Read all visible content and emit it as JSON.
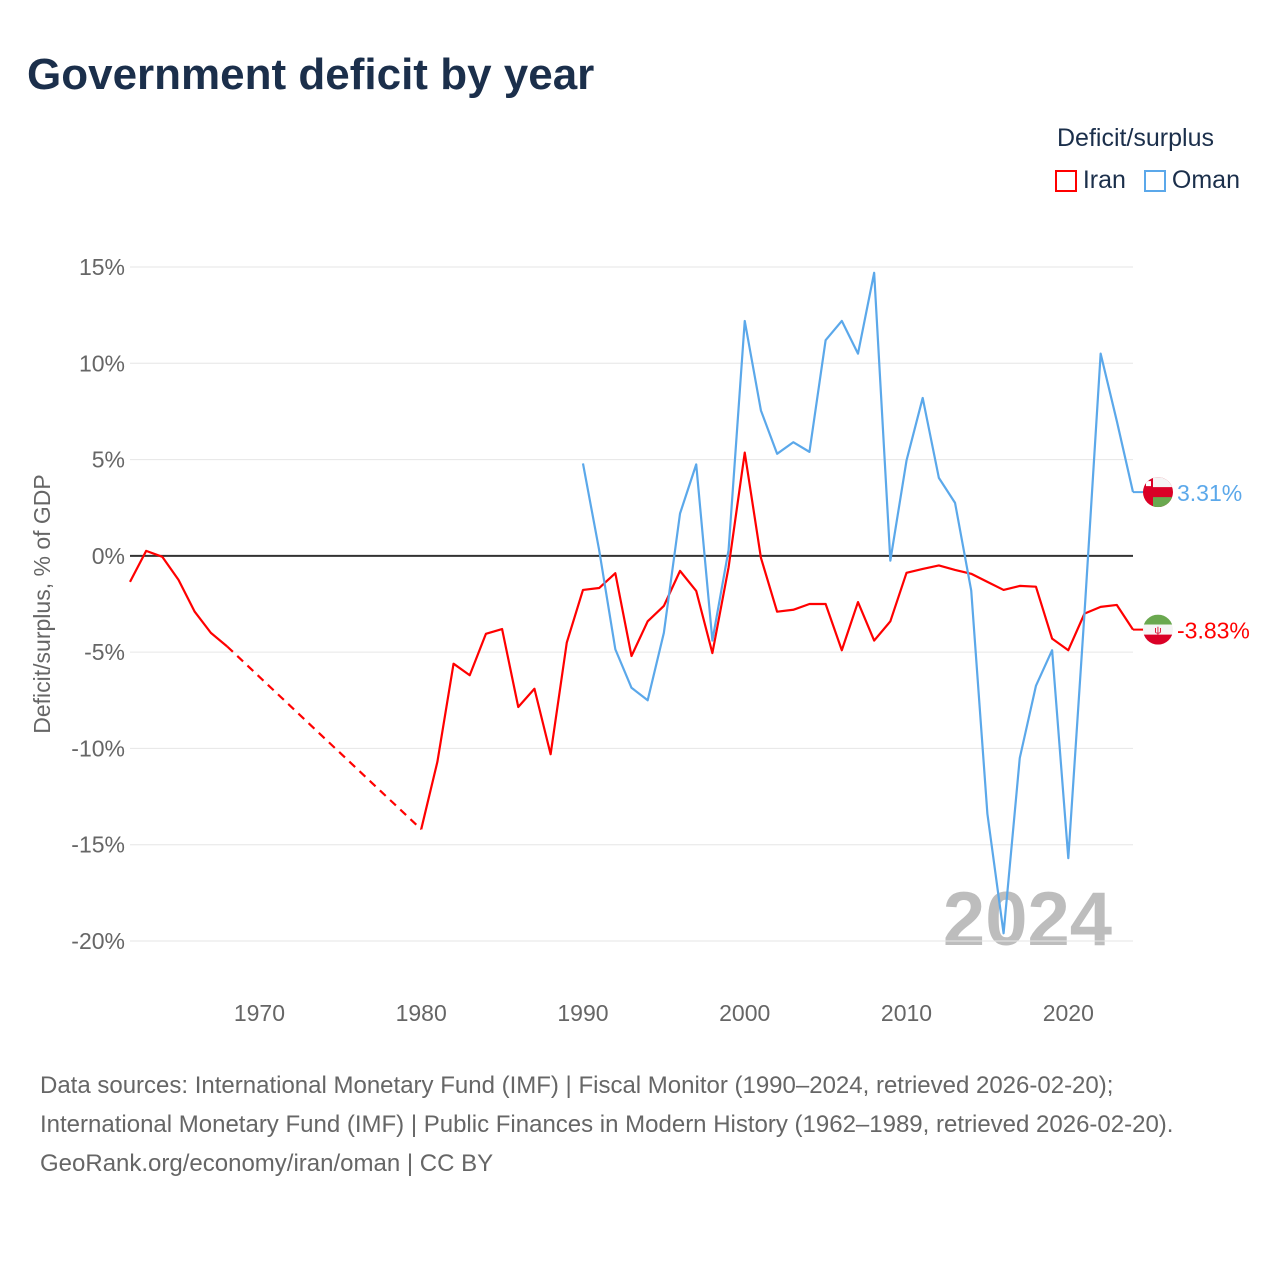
{
  "chart_data": {
    "type": "line",
    "title": "Government deficit by year",
    "ylabel": "Deficit/surplus, % of GDP",
    "xlabel": "",
    "xlim": [
      1962,
      2024
    ],
    "ylim": [
      -20,
      15
    ],
    "x_ticks": [
      1970,
      1980,
      1990,
      2000,
      2010,
      2020
    ],
    "x_tick_labels": [
      "1970",
      "1980",
      "1990",
      "2000",
      "2010",
      "2020"
    ],
    "y_ticks": [
      15,
      10,
      5,
      0,
      -5,
      -10,
      -15,
      -20
    ],
    "y_tick_labels": [
      "15%",
      "10%",
      "5%",
      "0%",
      "-5%",
      "-10%",
      "-15%",
      "-20%"
    ],
    "grid": true,
    "legend_title": "Deficit/surplus",
    "legend_position": "top-right",
    "year_watermark": "2024",
    "series": [
      {
        "name": "Iran",
        "color": "#ff0000",
        "end_label": "-3.83%",
        "flag": "iran-flag",
        "x": [
          1962,
          1963,
          1964,
          1965,
          1966,
          1967,
          1968,
          1980,
          1981,
          1982,
          1983,
          1984,
          1985,
          1986,
          1987,
          1988,
          1989,
          1990,
          1991,
          1992,
          1993,
          1994,
          1995,
          1996,
          1997,
          1998,
          1999,
          2000,
          2001,
          2002,
          2003,
          2004,
          2005,
          2006,
          2007,
          2008,
          2009,
          2010,
          2011,
          2012,
          2013,
          2014,
          2015,
          2016,
          2017,
          2018,
          2019,
          2020,
          2021,
          2022,
          2023,
          2024
        ],
        "values": [
          -1.35,
          0.26,
          -0.05,
          -1.25,
          -2.9,
          -4.0,
          -4.7,
          -14.2,
          -10.7,
          -5.6,
          -6.2,
          -4.05,
          -3.8,
          -7.85,
          -6.9,
          -10.3,
          -4.5,
          -1.77,
          -1.67,
          -0.9,
          -5.2,
          -3.4,
          -2.6,
          -0.78,
          -1.82,
          -5.05,
          -0.6,
          5.36,
          -0.1,
          -2.9,
          -2.8,
          -2.5,
          -2.5,
          -4.9,
          -2.4,
          -4.4,
          -3.4,
          -0.88,
          -0.68,
          -0.5,
          -0.73,
          -0.93,
          -1.35,
          -1.77,
          -1.56,
          -1.6,
          -4.3,
          -4.9,
          -3.0,
          -2.65,
          -2.55,
          -3.83
        ],
        "gaps": [
          [
            1968,
            1980
          ]
        ]
      },
      {
        "name": "Oman",
        "color": "#5ba8ea",
        "end_label": "3.31%",
        "flag": "oman-flag",
        "x": [
          1990,
          1991,
          1992,
          1993,
          1994,
          1995,
          1996,
          1997,
          1998,
          1999,
          2000,
          2001,
          2002,
          2003,
          2004,
          2005,
          2006,
          2007,
          2008,
          2009,
          2010,
          2011,
          2012,
          2013,
          2014,
          2015,
          2016,
          2017,
          2018,
          2019,
          2020,
          2021,
          2022,
          2023,
          2024
        ],
        "values": [
          4.8,
          0.3,
          -4.85,
          -6.85,
          -7.5,
          -4.0,
          2.2,
          4.75,
          -4.4,
          0.3,
          12.2,
          7.55,
          5.3,
          5.9,
          5.4,
          11.2,
          12.2,
          10.5,
          14.7,
          -0.25,
          4.95,
          8.2,
          4.05,
          2.75,
          -1.8,
          -13.4,
          -19.6,
          -10.5,
          -6.75,
          -4.9,
          -15.7,
          -3.0,
          10.5,
          7.0,
          3.31
        ],
        "gaps": []
      }
    ]
  },
  "footer": {
    "sources": "Data sources: International Monetary Fund (IMF) | Fiscal Monitor (1990–2024, retrieved 2026-02-20); International Monetary Fund (IMF) | Public Finances in Modern History (1962–1989, retrieved 2026-02-20).",
    "credit": "GeoRank.org/economy/iran/oman | CC BY"
  }
}
